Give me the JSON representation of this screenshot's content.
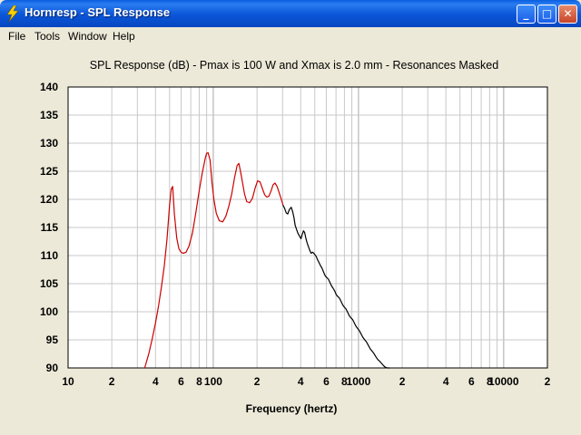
{
  "window": {
    "title": "Hornresp - SPL Response",
    "minimize_glyph": "_",
    "maximize_glyph": "□",
    "close_glyph": "✕",
    "icon": "lightning-icon"
  },
  "menu": {
    "items": [
      {
        "label": "File"
      },
      {
        "label": "Tools"
      },
      {
        "label": "Window"
      },
      {
        "label": "Help"
      }
    ]
  },
  "chart_data": {
    "type": "line",
    "title": "SPL Response (dB) - Pmax is 100 W and Xmax is 2.0 mm - Resonances Masked",
    "xlabel": "Frequency (hertz)",
    "ylabel": "",
    "x_scale": "log",
    "xlim": [
      10,
      20000
    ],
    "ylim": [
      90,
      140
    ],
    "grid": true,
    "x_tick_labels": [
      {
        "value": 10,
        "label": "10"
      },
      {
        "value": 20,
        "label": "2"
      },
      {
        "value": 40,
        "label": "4"
      },
      {
        "value": 60,
        "label": "6"
      },
      {
        "value": 80,
        "label": "8"
      },
      {
        "value": 100,
        "label": "100"
      },
      {
        "value": 200,
        "label": "2"
      },
      {
        "value": 400,
        "label": "4"
      },
      {
        "value": 600,
        "label": "6"
      },
      {
        "value": 800,
        "label": "8"
      },
      {
        "value": 1000,
        "label": "1000"
      },
      {
        "value": 2000,
        "label": "2"
      },
      {
        "value": 4000,
        "label": "4"
      },
      {
        "value": 6000,
        "label": "6"
      },
      {
        "value": 8000,
        "label": "8"
      },
      {
        "value": 10000,
        "label": "10000"
      },
      {
        "value": 20000,
        "label": "2"
      }
    ],
    "y_ticks": [
      90,
      95,
      100,
      105,
      110,
      115,
      120,
      125,
      130,
      135,
      140
    ],
    "colors": {
      "masked": "#cc0000",
      "normal": "#000000",
      "grid": "#c8c8c8",
      "plot_bg": "#ffffff"
    },
    "series": [
      {
        "color": "#cc0000",
        "x": [
          33.7,
          36,
          38,
          40,
          42,
          44,
          46,
          48,
          50,
          51.3,
          52.5,
          54,
          56,
          58,
          60,
          62,
          65,
          68,
          72,
          76,
          80,
          84,
          88,
          90,
          92,
          95,
          98,
          101,
          105,
          110,
          116,
          122,
          128,
          134,
          140,
          146,
          150,
          154,
          158,
          164,
          170,
          178,
          186,
          194,
          202,
          210,
          218,
          226,
          234,
          242,
          250,
          258,
          266,
          275,
          284,
          294,
          302
        ],
        "y": [
          90,
          92.6,
          95.2,
          98.0,
          101.1,
          104.5,
          108.2,
          113.0,
          119.0,
          121.8,
          122.3,
          117.4,
          113.1,
          111.2,
          110.6,
          110.4,
          110.6,
          111.7,
          114.1,
          117.8,
          121.5,
          124.7,
          127.3,
          128.2,
          128.3,
          127.0,
          123.0,
          120.0,
          117.5,
          116.2,
          116.0,
          117.0,
          118.8,
          121.0,
          123.8,
          126.0,
          126.4,
          125.0,
          123.4,
          121.0,
          119.6,
          119.4,
          120.2,
          122.0,
          123.3,
          123.1,
          121.9,
          120.8,
          120.4,
          120.6,
          121.5,
          122.6,
          122.9,
          122.3,
          121.2,
          120.0,
          119.0
        ]
      },
      {
        "color": "#000000",
        "x": [
          302,
          310,
          318,
          326,
          334,
          344,
          352,
          360,
          366,
          374,
          382,
          392,
          402,
          410,
          418,
          426,
          434,
          442,
          452,
          462,
          472,
          484,
          496,
          510,
          522,
          536,
          548,
          562,
          576,
          590,
          604,
          620,
          636,
          652,
          668,
          686,
          704,
          722,
          740,
          760,
          780,
          800,
          820,
          842,
          864,
          888,
          912,
          936,
          962,
          988,
          1016,
          1044,
          1074,
          1104,
          1136,
          1170,
          1204,
          1240,
          1276,
          1316,
          1356,
          1398,
          1442,
          1488,
          1536,
          1584,
          1640
        ],
        "y": [
          119.0,
          118.4,
          117.6,
          117.4,
          118.2,
          118.6,
          117.8,
          116.7,
          115.4,
          114.7,
          114.0,
          113.5,
          113.0,
          113.8,
          114.4,
          114.1,
          113.1,
          112.3,
          111.6,
          110.9,
          110.4,
          110.6,
          110.3,
          109.9,
          109.3,
          108.7,
          108.2,
          107.7,
          107.0,
          106.4,
          106.1,
          105.8,
          105.2,
          104.6,
          104.2,
          103.7,
          103.0,
          102.7,
          102.4,
          101.8,
          101.2,
          100.8,
          100.5,
          99.9,
          99.3,
          98.9,
          98.6,
          98.0,
          97.4,
          97.0,
          96.6,
          96.0,
          95.4,
          95.0,
          94.6,
          94.0,
          93.4,
          93.0,
          92.6,
          92.0,
          91.5,
          91.2,
          90.8,
          90.4,
          90.1,
          90.0,
          90.0
        ]
      }
    ]
  }
}
